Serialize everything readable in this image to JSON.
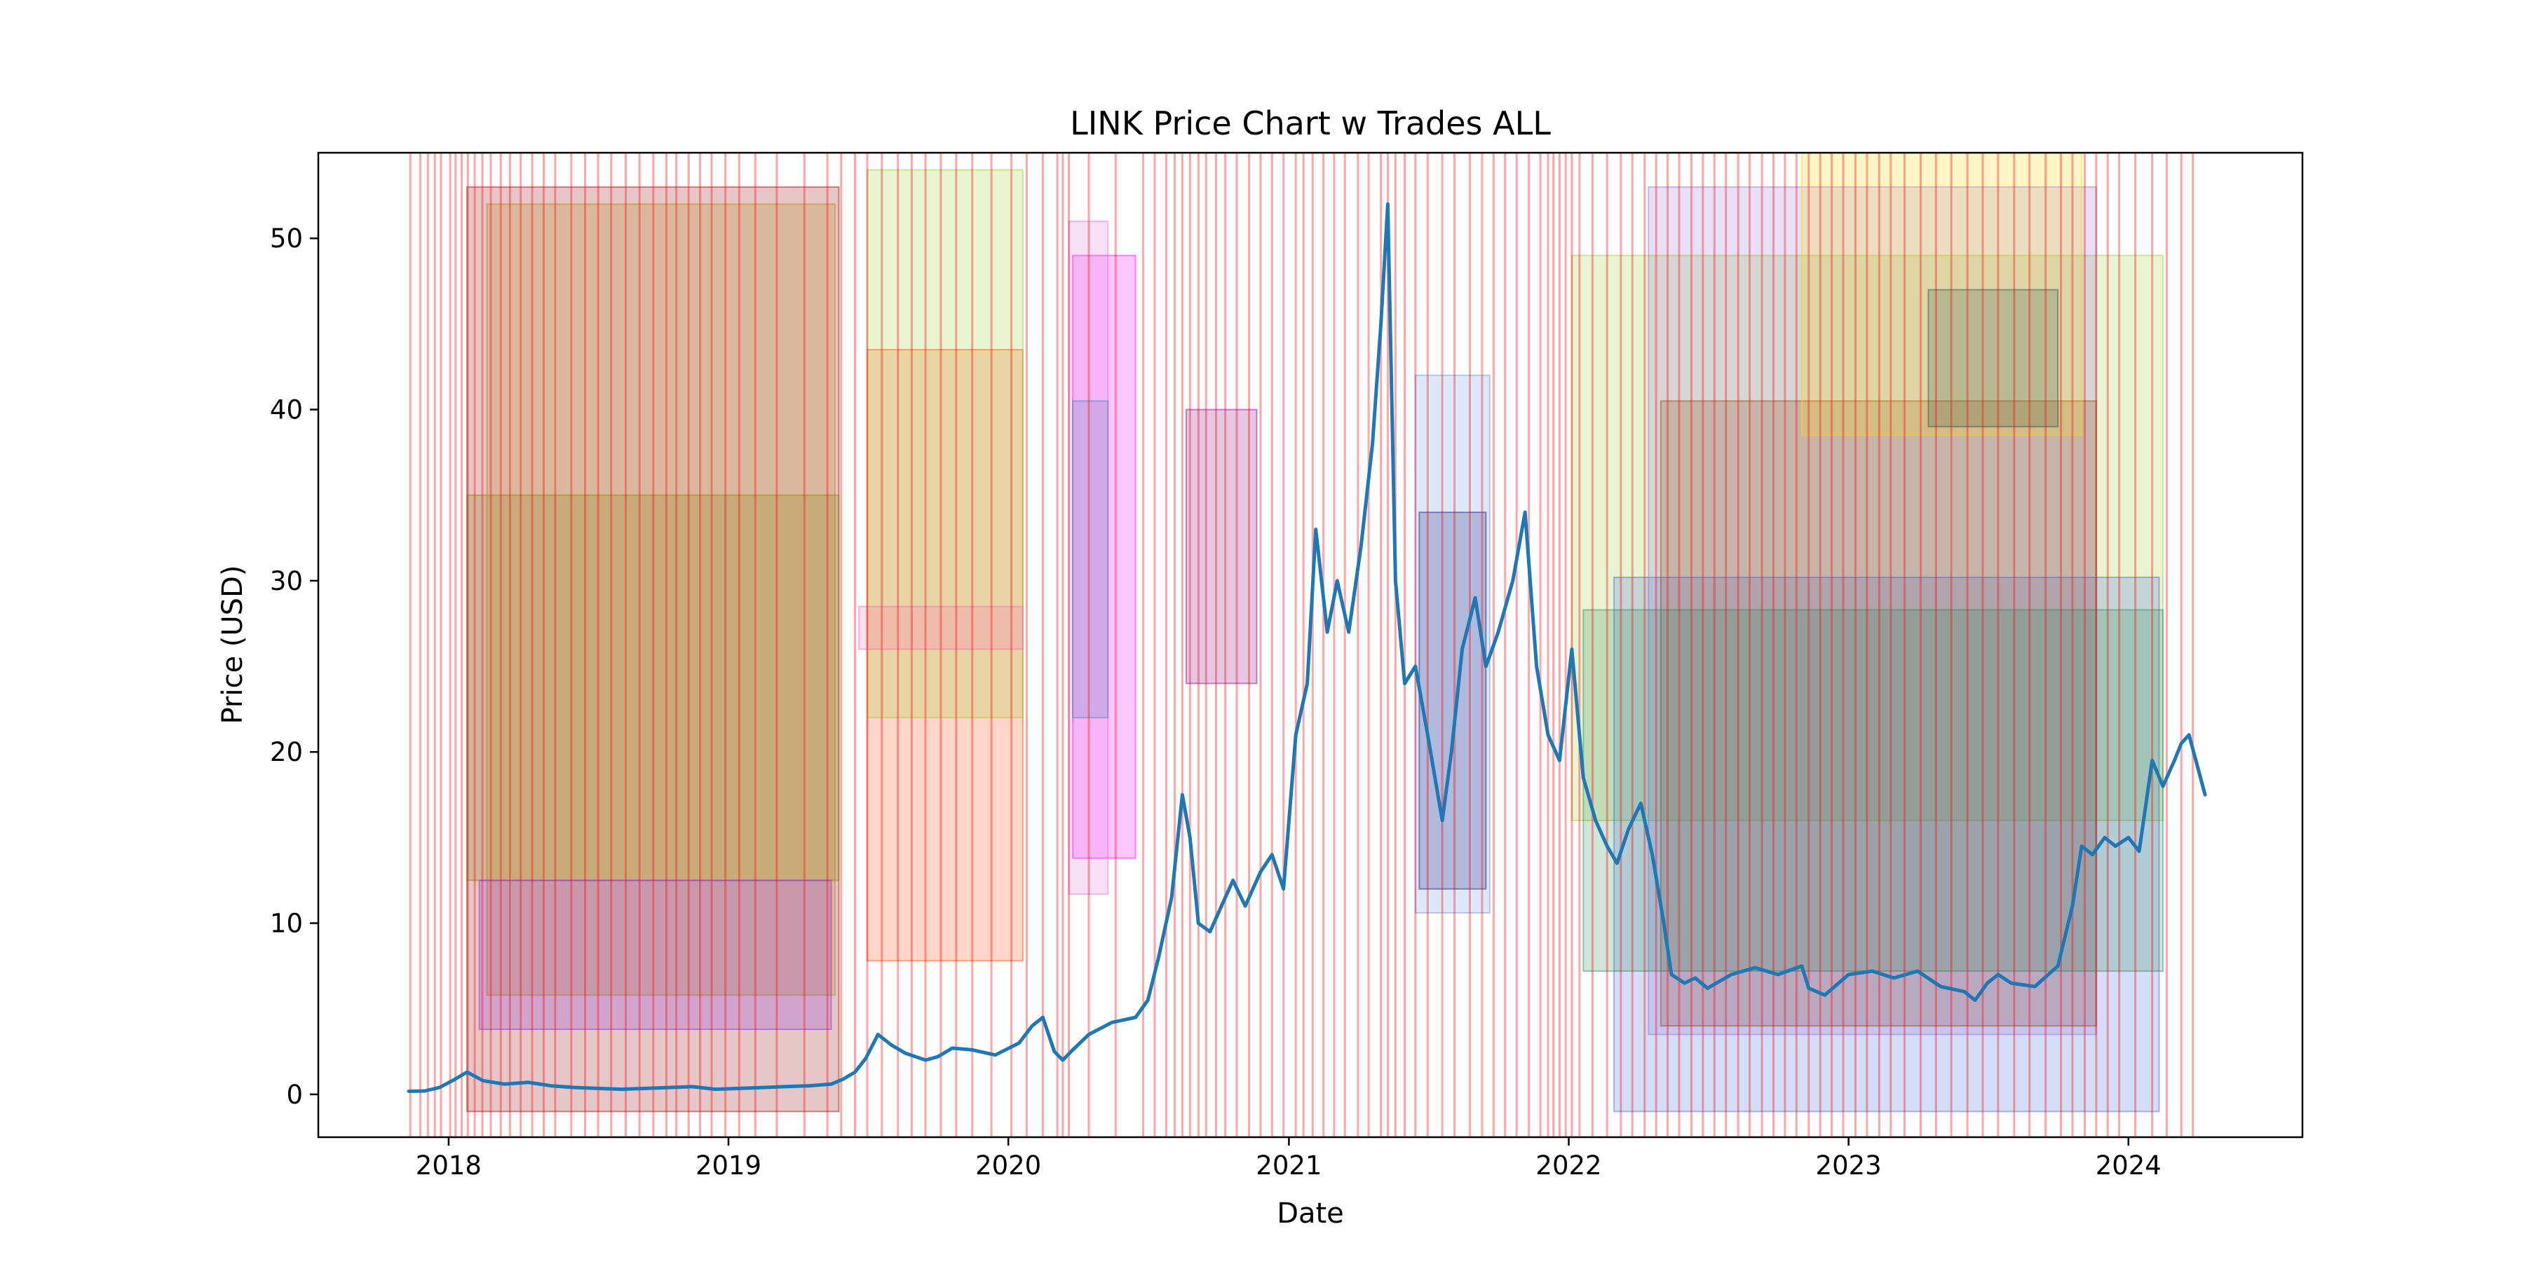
{
  "chart_data": {
    "type": "line",
    "title": "LINK Price Chart w Trades ALL",
    "xlabel": "Date",
    "ylabel": "Price (USD)",
    "xlim": [
      "2017-07-15",
      "2024-08-15"
    ],
    "ylim": [
      -2.5,
      55
    ],
    "x_ticks": [
      "2018",
      "2019",
      "2020",
      "2021",
      "2022",
      "2023",
      "2024"
    ],
    "x_tick_dates": [
      "2018-01-01",
      "2019-01-01",
      "2020-01-01",
      "2021-01-01",
      "2022-01-01",
      "2023-01-01",
      "2024-01-01"
    ],
    "y_ticks": [
      0,
      10,
      20,
      30,
      40,
      50
    ],
    "grid": false,
    "series": [
      {
        "color": "#1f77b4",
        "x": [
          "2017-11-10",
          "2017-12-01",
          "2017-12-20",
          "2018-01-10",
          "2018-01-25",
          "2018-02-15",
          "2018-03-15",
          "2018-04-15",
          "2018-05-15",
          "2018-06-15",
          "2018-07-15",
          "2018-08-15",
          "2018-09-15",
          "2018-10-15",
          "2018-11-15",
          "2018-12-15",
          "2019-01-15",
          "2019-02-15",
          "2019-03-15",
          "2019-04-15",
          "2019-05-15",
          "2019-05-31",
          "2019-06-15",
          "2019-06-29",
          "2019-07-15",
          "2019-08-01",
          "2019-08-20",
          "2019-09-15",
          "2019-10-01",
          "2019-10-20",
          "2019-11-15",
          "2019-12-15",
          "2020-01-15",
          "2020-02-01",
          "2020-02-15",
          "2020-03-01",
          "2020-03-12",
          "2020-03-25",
          "2020-04-15",
          "2020-05-15",
          "2020-06-15",
          "2020-07-01",
          "2020-07-15",
          "2020-08-01",
          "2020-08-15",
          "2020-08-25",
          "2020-09-05",
          "2020-09-20",
          "2020-10-05",
          "2020-10-20",
          "2020-11-05",
          "2020-11-25",
          "2020-12-10",
          "2020-12-25",
          "2021-01-10",
          "2021-01-25",
          "2021-02-05",
          "2021-02-20",
          "2021-03-05",
          "2021-03-20",
          "2021-04-05",
          "2021-04-20",
          "2021-05-01",
          "2021-05-10",
          "2021-05-20",
          "2021-06-01",
          "2021-06-15",
          "2021-07-01",
          "2021-07-20",
          "2021-08-01",
          "2021-08-15",
          "2021-09-01",
          "2021-09-15",
          "2021-10-01",
          "2021-10-20",
          "2021-11-05",
          "2021-11-20",
          "2021-12-05",
          "2021-12-20",
          "2022-01-05",
          "2022-01-20",
          "2022-02-05",
          "2022-02-20",
          "2022-03-05",
          "2022-03-20",
          "2022-04-05",
          "2022-04-20",
          "2022-05-05",
          "2022-05-15",
          "2022-06-01",
          "2022-06-15",
          "2022-07-01",
          "2022-08-01",
          "2022-09-01",
          "2022-10-01",
          "2022-11-01",
          "2022-11-10",
          "2022-12-01",
          "2023-01-01",
          "2023-02-01",
          "2023-03-01",
          "2023-04-01",
          "2023-05-01",
          "2023-06-01",
          "2023-06-15",
          "2023-07-01",
          "2023-07-15",
          "2023-08-01",
          "2023-09-01",
          "2023-10-01",
          "2023-10-20",
          "2023-11-01",
          "2023-11-15",
          "2023-12-01",
          "2023-12-15",
          "2024-01-01",
          "2024-01-15",
          "2024-02-01",
          "2024-02-15",
          "2024-03-01",
          "2024-03-10",
          "2024-03-20",
          "2024-04-01",
          "2024-04-10"
        ],
        "y": [
          0.18,
          0.2,
          0.4,
          0.9,
          1.3,
          0.8,
          0.6,
          0.7,
          0.5,
          0.4,
          0.35,
          0.3,
          0.35,
          0.4,
          0.45,
          0.3,
          0.35,
          0.4,
          0.45,
          0.5,
          0.6,
          0.9,
          1.3,
          2.1,
          3.5,
          2.9,
          2.4,
          2.0,
          2.2,
          2.7,
          2.6,
          2.3,
          3.0,
          4.0,
          4.5,
          2.5,
          2.0,
          2.6,
          3.5,
          4.2,
          4.5,
          5.5,
          8.0,
          11.5,
          17.5,
          15.0,
          10.0,
          9.5,
          11.0,
          12.5,
          11.0,
          13.0,
          14.0,
          12.0,
          21.0,
          24.0,
          33.0,
          27.0,
          30.0,
          27.0,
          32.0,
          38.0,
          45.0,
          52.0,
          30.0,
          24.0,
          25.0,
          21.0,
          16.0,
          20.0,
          26.0,
          29.0,
          25.0,
          27.0,
          30.0,
          34.0,
          25.0,
          21.0,
          19.5,
          26.0,
          18.5,
          16.0,
          14.5,
          13.5,
          15.5,
          17.0,
          14.0,
          10.0,
          7.0,
          6.5,
          6.8,
          6.2,
          7.0,
          7.4,
          7.0,
          7.5,
          6.2,
          5.8,
          7.0,
          7.2,
          6.8,
          7.2,
          6.3,
          6.0,
          5.5,
          6.5,
          7.0,
          6.5,
          6.3,
          7.5,
          11.0,
          14.5,
          14.0,
          15.0,
          14.5,
          15.0,
          14.2,
          19.5,
          18.0,
          19.5,
          20.5,
          21.0,
          19.0,
          17.5
        ]
      }
    ],
    "trade_lines": [
      "2017-11-12",
      "2017-11-25",
      "2017-12-05",
      "2017-12-14",
      "2017-12-22",
      "2018-01-03",
      "2018-01-10",
      "2018-01-18",
      "2018-01-26",
      "2018-02-04",
      "2018-02-14",
      "2018-02-25",
      "2018-03-10",
      "2018-03-22",
      "2018-04-05",
      "2018-04-20",
      "2018-05-05",
      "2018-05-20",
      "2018-06-10",
      "2018-06-28",
      "2018-07-15",
      "2018-08-01",
      "2018-08-20",
      "2018-09-07",
      "2018-09-25",
      "2018-10-12",
      "2018-10-25",
      "2018-11-10",
      "2018-11-25",
      "2018-12-10",
      "2018-12-28",
      "2019-01-15",
      "2019-02-05",
      "2019-03-05",
      "2019-04-10",
      "2019-05-10",
      "2019-05-28",
      "2019-06-15",
      "2019-07-01",
      "2019-07-20",
      "2019-08-10",
      "2019-08-28",
      "2019-09-15",
      "2019-10-05",
      "2019-10-25",
      "2019-11-15",
      "2019-12-10",
      "2020-01-05",
      "2020-01-25",
      "2020-02-15",
      "2020-03-05",
      "2020-03-12",
      "2020-03-20",
      "2020-04-15",
      "2020-05-20",
      "2020-06-25",
      "2020-07-10",
      "2020-07-25",
      "2020-08-05",
      "2020-08-15",
      "2020-08-25",
      "2020-09-05",
      "2020-09-15",
      "2020-09-28",
      "2020-10-10",
      "2020-10-25",
      "2020-11-10",
      "2020-11-25",
      "2020-12-10",
      "2020-12-25",
      "2021-01-10",
      "2021-01-20",
      "2021-02-01",
      "2021-02-15",
      "2021-03-01",
      "2021-03-15",
      "2021-04-01",
      "2021-04-15",
      "2021-05-01",
      "2021-05-10",
      "2021-05-20",
      "2021-06-01",
      "2021-06-15",
      "2021-07-01",
      "2021-07-20",
      "2021-08-05",
      "2021-08-25",
      "2021-09-10",
      "2021-09-25",
      "2021-10-10",
      "2021-10-25",
      "2021-11-10",
      "2021-11-25",
      "2021-12-05",
      "2021-12-12",
      "2021-12-20",
      "2021-12-28",
      "2022-01-05",
      "2022-01-15",
      "2022-02-01",
      "2022-02-20",
      "2022-03-10",
      "2022-03-25",
      "2022-04-10",
      "2022-04-25",
      "2022-05-10",
      "2022-05-25",
      "2022-06-10",
      "2022-06-25",
      "2022-07-10",
      "2022-07-25",
      "2022-08-10",
      "2022-08-25",
      "2022-09-10",
      "2022-09-25",
      "2022-10-10",
      "2022-10-25",
      "2022-11-10",
      "2022-11-25",
      "2022-12-10",
      "2022-12-25",
      "2023-01-10",
      "2023-01-25",
      "2023-02-10",
      "2023-02-25",
      "2023-03-15",
      "2023-04-05",
      "2023-04-25",
      "2023-05-15",
      "2023-06-05",
      "2023-06-25",
      "2023-07-15",
      "2023-08-05",
      "2023-08-25",
      "2023-09-15",
      "2023-10-05",
      "2023-10-20",
      "2023-11-05",
      "2023-11-20",
      "2023-12-05",
      "2023-12-20",
      "2024-01-10",
      "2024-02-01",
      "2024-02-20",
      "2024-03-10",
      "2024-03-25"
    ],
    "trade_boxes": [
      {
        "start": "2018-01-25",
        "end": "2019-05-25",
        "low": -1.0,
        "high": 53.0,
        "color": "#8b0000"
      },
      {
        "start": "2018-01-25",
        "end": "2019-05-25",
        "low": 12.5,
        "high": 35.0,
        "color": "#808000"
      },
      {
        "start": "2018-02-20",
        "end": "2019-05-20",
        "low": 5.8,
        "high": 52.0,
        "color": "#b8860b"
      },
      {
        "start": "2018-02-10",
        "end": "2019-05-15",
        "low": 3.8,
        "high": 12.5,
        "color": "#8a2be2"
      },
      {
        "start": "2019-07-01",
        "end": "2020-01-20",
        "low": 7.8,
        "high": 43.5,
        "color": "#ff4500"
      },
      {
        "start": "2019-07-01",
        "end": "2020-01-20",
        "low": 22.0,
        "high": 54.0,
        "color": "#9acd32"
      },
      {
        "start": "2019-06-20",
        "end": "2020-01-20",
        "low": 26.0,
        "high": 28.5,
        "color": "#ff69b4"
      },
      {
        "start": "2020-03-25",
        "end": "2020-06-15",
        "low": 13.8,
        "high": 49.0,
        "color": "#ff00ff"
      },
      {
        "start": "2020-03-20",
        "end": "2020-05-10",
        "low": 11.7,
        "high": 51.0,
        "color": "#da70d6"
      },
      {
        "start": "2020-03-25",
        "end": "2020-05-10",
        "low": 22.0,
        "high": 40.5,
        "color": "#4682b4"
      },
      {
        "start": "2020-08-20",
        "end": "2020-11-20",
        "low": 24.0,
        "high": 40.0,
        "color": "#800080"
      },
      {
        "start": "2021-06-15",
        "end": "2021-09-20",
        "low": 10.6,
        "high": 42.0,
        "color": "#6495ed"
      },
      {
        "start": "2021-06-20",
        "end": "2021-09-15",
        "low": 12.0,
        "high": 34.0,
        "color": "#191970"
      },
      {
        "start": "2022-01-05",
        "end": "2024-02-15",
        "low": 16.0,
        "high": 49.0,
        "color": "#9acd32"
      },
      {
        "start": "2022-03-01",
        "end": "2024-02-10",
        "low": -1.0,
        "high": 30.2,
        "color": "#4169e1"
      },
      {
        "start": "2022-04-15",
        "end": "2023-11-20",
        "low": 3.5,
        "high": 53.0,
        "color": "#9370db"
      },
      {
        "start": "2022-05-01",
        "end": "2023-11-20",
        "low": 4.0,
        "high": 40.5,
        "color": "#8b4513"
      },
      {
        "start": "2022-01-20",
        "end": "2024-02-15",
        "low": 7.2,
        "high": 28.3,
        "color": "#2e8b57"
      },
      {
        "start": "2022-11-01",
        "end": "2023-11-01",
        "low": 38.5,
        "high": 55.0,
        "color": "#ffd700"
      },
      {
        "start": "2023-04-15",
        "end": "2023-10-01",
        "low": 39.0,
        "high": 47.0,
        "color": "#2f4f4f"
      }
    ]
  }
}
